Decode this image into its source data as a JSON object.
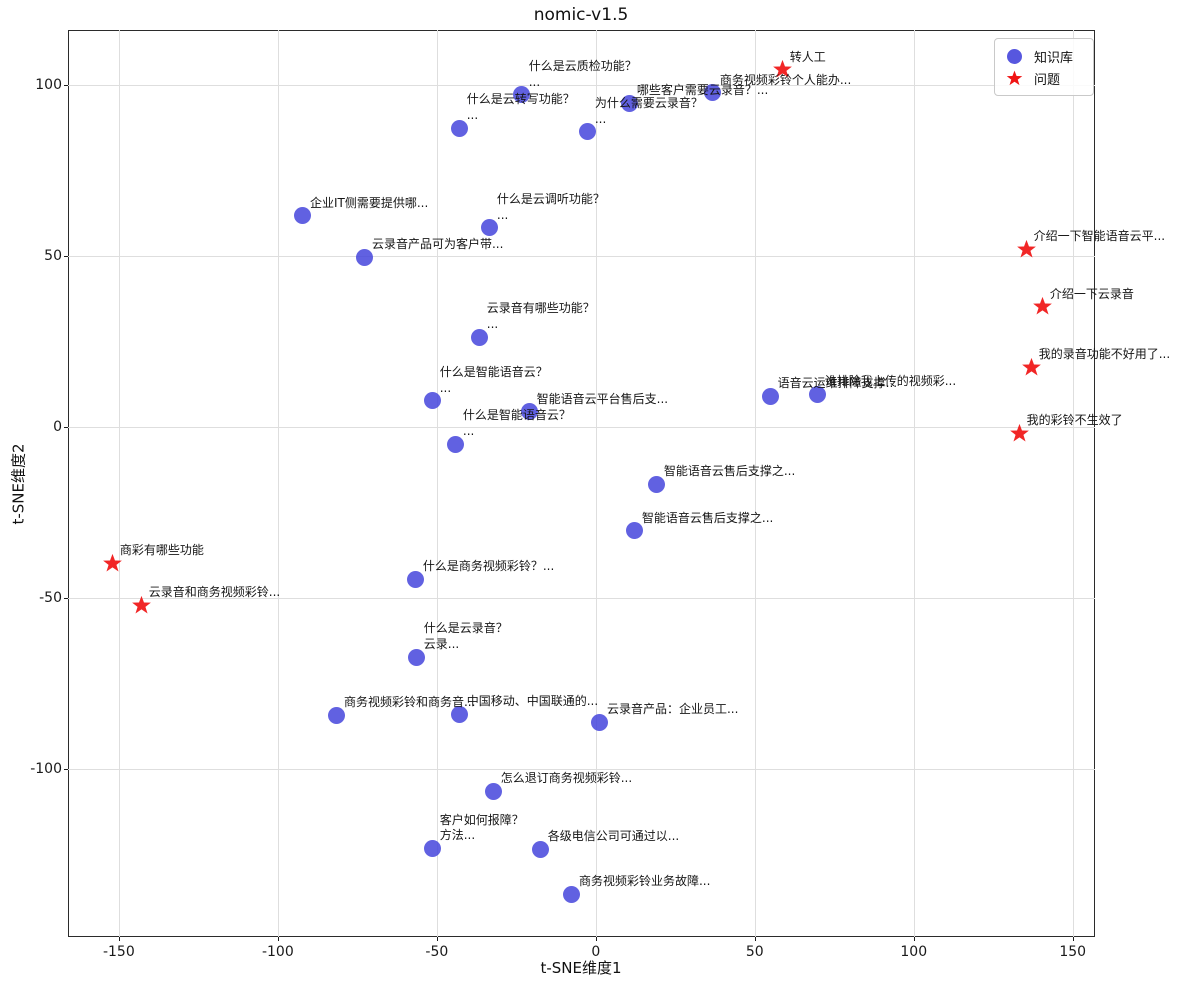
{
  "chart_data": {
    "type": "scatter",
    "title": "nomic-v1.5",
    "xlabel": "t-SNE维度1",
    "ylabel": "t-SNE维度2",
    "xlim": [
      -166,
      157
    ],
    "ylim": [
      -149.2,
      116.1
    ],
    "xticks": [
      -150,
      -100,
      -50,
      0,
      50,
      100,
      150
    ],
    "yticks": [
      -100,
      -50,
      0,
      50,
      100
    ],
    "grid": true,
    "legend": {
      "position": "upper right",
      "entries": [
        {
          "label": "知识库",
          "marker": "circle",
          "color": "#4545dc"
        },
        {
          "label": "问题",
          "marker": "star",
          "color": "#f01414"
        }
      ]
    },
    "series": [
      {
        "name": "知识库",
        "marker": "circle",
        "color": "#4545dc",
        "points": [
          {
            "x": -23.3,
            "y": 97.1,
            "label": "什么是云质检功能？\n..."
          },
          {
            "x": 10.7,
            "y": 94.7,
            "label": "哪些客户需要云录音？..."
          },
          {
            "x": 36.8,
            "y": 97.7,
            "label": "商务视频彩铃个人能办..."
          },
          {
            "x": -42.8,
            "y": 87.4,
            "label": "什么是云转写功能？\n..."
          },
          {
            "x": -2.5,
            "y": 86.3,
            "label": "为什么需要云录音？\n..."
          },
          {
            "x": -92.1,
            "y": 61.7,
            "label": "企业IT侧需要提供哪..."
          },
          {
            "x": -33.3,
            "y": 58.2,
            "label": "什么是云调听功能？\n..."
          },
          {
            "x": -72.6,
            "y": 49.7,
            "label": "云录音产品可为客户带..."
          },
          {
            "x": -36.5,
            "y": 26.3,
            "label": "云录音有哪些功能？\n..."
          },
          {
            "x": -51.3,
            "y": 7.6,
            "label": "什么是智能语音云？\n..."
          },
          {
            "x": -20.8,
            "y": 4.4,
            "label": "智能语音云平台售后支..."
          },
          {
            "x": -44.0,
            "y": -5.0,
            "label": "什么是智能语音云？\n..."
          },
          {
            "x": 55.0,
            "y": 8.8,
            "label": "语音云运维排障支撑..."
          },
          {
            "x": 69.8,
            "y": 9.4,
            "label": "谁排除我上传的视频彩..."
          },
          {
            "x": 19.2,
            "y": -16.7,
            "label": "智能语音云售后支撑之..."
          },
          {
            "x": 12.3,
            "y": -30.4,
            "label": "智能语音云售后支撑之..."
          },
          {
            "x": -56.6,
            "y": -44.7,
            "label": "什么是商务视频彩铃？..."
          },
          {
            "x": -56.3,
            "y": -67.3,
            "label": "什么是云录音？\n云录..."
          },
          {
            "x": -81.4,
            "y": -84.5,
            "label": "商务视频彩铃和商务音..."
          },
          {
            "x": -42.8,
            "y": -84.2,
            "label": "中国移动、中国联通的..."
          },
          {
            "x": 1.3,
            "y": -86.5,
            "label": "云录音产品：企业员工..."
          },
          {
            "x": -32.1,
            "y": -106.7,
            "label": "怎么退订商务视频彩铃..."
          },
          {
            "x": -51.3,
            "y": -123.4,
            "label": "客户如何报障？\n方法..."
          },
          {
            "x": -17.3,
            "y": -123.7,
            "label": "各级电信公司可通过以..."
          },
          {
            "x": -7.5,
            "y": -136.8,
            "label": "商务视频彩铃业务故障..."
          }
        ]
      },
      {
        "name": "问题",
        "marker": "star",
        "color": "#f01414",
        "points": [
          {
            "x": 58.8,
            "y": 104.4,
            "label": "转人工"
          },
          {
            "x": 135.5,
            "y": 51.8,
            "label": "介绍一下智能语音云平..."
          },
          {
            "x": 140.6,
            "y": 35.1,
            "label": "介绍一下云录音"
          },
          {
            "x": 137.1,
            "y": 17.5,
            "label": "我的录音功能不好用了..."
          },
          {
            "x": 133.3,
            "y": -2.0,
            "label": "我的彩铃不生效了"
          },
          {
            "x": -151.9,
            "y": -40.0,
            "label": "商彩有哪些功能"
          },
          {
            "x": -142.8,
            "y": -52.3,
            "label": "云录音和商务视频彩铃..."
          }
        ]
      }
    ]
  }
}
